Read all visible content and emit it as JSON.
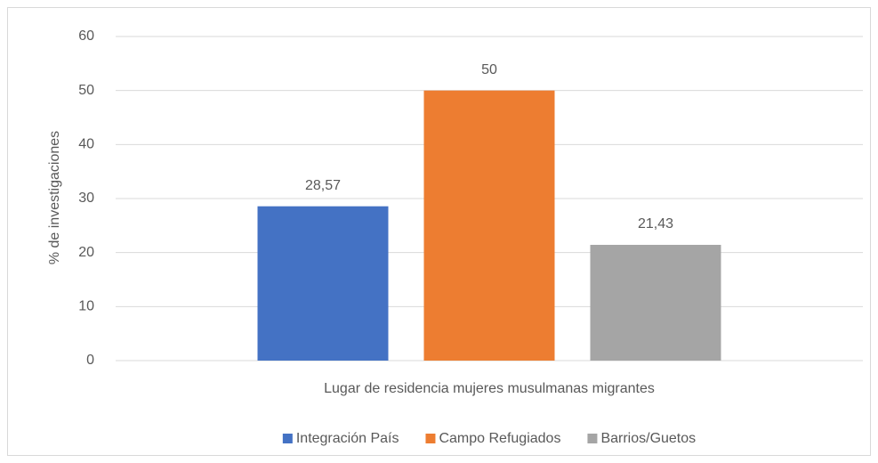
{
  "chart_data": {
    "type": "bar",
    "categories": [
      "Lugar de residencia mujeres musulmanas migrantes"
    ],
    "series": [
      {
        "name": "Integración País",
        "color": "#4472c4",
        "values": [
          28.57
        ],
        "value_labels": [
          "28,57"
        ]
      },
      {
        "name": "Campo Refugiados",
        "color": "#ed7d31",
        "values": [
          50
        ],
        "value_labels": [
          "50"
        ]
      },
      {
        "name": "Barrios/Guetos",
        "color": "#a5a5a5",
        "values": [
          21.43
        ],
        "value_labels": [
          "21,43"
        ]
      }
    ],
    "ylabel": "% de investigaciones",
    "ylim": [
      0,
      60
    ],
    "yticks": [
      0,
      10,
      20,
      30,
      40,
      50,
      60
    ],
    "grid": true,
    "legend": "bottom"
  }
}
